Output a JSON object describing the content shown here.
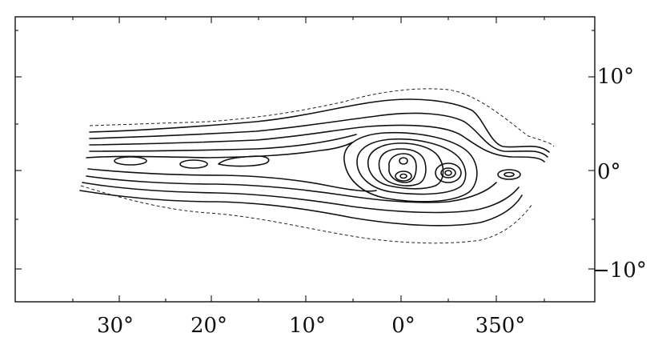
{
  "map": {
    "x_ticks": [
      {
        "label": "30°"
      },
      {
        "label": "20°"
      },
      {
        "label": "10°"
      },
      {
        "label": "0°"
      },
      {
        "label": "350°"
      }
    ],
    "y_ticks": [
      {
        "label": "10°"
      },
      {
        "label": "0°"
      },
      {
        "label": "−10°"
      }
    ]
  }
}
